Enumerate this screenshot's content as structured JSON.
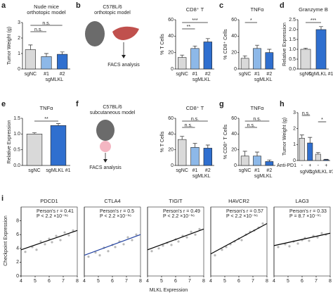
{
  "figure": {
    "diagrams": [
      {
        "panel": "b",
        "strain": "C57BL/6",
        "model": "orthotopic model",
        "step": "FACS analysis"
      },
      {
        "panel": "f",
        "strain": "C57BL/6",
        "model": "subcutaneous model",
        "step": "FACS analysis"
      }
    ],
    "scatter_row": {
      "panel": "i",
      "xlabel": "MLKL Expression",
      "ylabel": "Checkpoint Expression"
    }
  },
  "chart_data": [
    {
      "type": "bar",
      "panel": "a",
      "title": "Nude mice",
      "subtitle": "orthotopic model",
      "ylabel": "Tumor Weight (g)",
      "categories": [
        "sgNC",
        "#1",
        "#2"
      ],
      "group_label": "sgMLKL",
      "values": [
        1.25,
        0.8,
        0.95
      ],
      "errors": [
        0.3,
        0.2,
        0.15
      ],
      "colors": [
        "#d9d9d9",
        "#8db8e8",
        "#2f6fcf"
      ],
      "ylim": [
        0,
        3
      ],
      "yticks": [
        0,
        1,
        2,
        3
      ],
      "annotations": [
        "n.s.",
        "n.s."
      ]
    },
    {
      "type": "bar",
      "title": "CD8⁺ T",
      "ylabel": "% T Cells",
      "categories": [
        "sgNC",
        "#1",
        "#2"
      ],
      "group_label": "sgMLKL",
      "values": [
        14,
        25,
        33
      ],
      "errors": [
        3,
        3,
        4
      ],
      "colors": [
        "#d9d9d9",
        "#8db8e8",
        "#2f6fcf"
      ],
      "ylim": [
        0,
        60
      ],
      "yticks": [
        0,
        20,
        40,
        60
      ],
      "annotations": [
        "***",
        "**"
      ]
    },
    {
      "type": "bar",
      "panel": "c",
      "title": "TNFα",
      "ylabel": "% CD8⁺ Cells",
      "categories": [
        "sgNC",
        "#1",
        "#2"
      ],
      "group_label": "sgMLKL",
      "values": [
        13,
        25,
        20
      ],
      "errors": [
        3,
        4,
        4
      ],
      "colors": [
        "#d9d9d9",
        "#8db8e8",
        "#2f6fcf"
      ],
      "ylim": [
        0,
        60
      ],
      "yticks": [
        0,
        20,
        40,
        60
      ],
      "annotations": [
        "*"
      ]
    },
    {
      "type": "bar",
      "panel": "d",
      "title": "Granzyme B",
      "ylabel": "Relative Expression",
      "categories": [
        "sgNC",
        "sgMLKL #1"
      ],
      "values": [
        1.0,
        2.0
      ],
      "errors": [
        0.06,
        0.15
      ],
      "colors": [
        "#d9d9d9",
        "#2f6fcf"
      ],
      "ylim": [
        0,
        2.5
      ],
      "yticks": [
        {
          "value": 0,
          "label": "0.0"
        },
        0.5,
        {
          "value": 1,
          "label": "1.0"
        },
        1.5,
        {
          "value": 2,
          "label": "2.0"
        },
        2.5
      ],
      "annotations": [
        "***"
      ]
    },
    {
      "type": "bar",
      "panel": "e",
      "title": "TNFα",
      "ylabel": "Relative Expression",
      "categories": [
        "sgNC",
        "sgMLKL #1"
      ],
      "values": [
        1.0,
        1.27
      ],
      "errors": [
        0.04,
        0.06
      ],
      "colors": [
        "#d9d9d9",
        "#2f6fcf"
      ],
      "ylim": [
        0,
        1.5
      ],
      "yticks": [
        {
          "value": 0,
          "label": "0.0"
        },
        0.5,
        {
          "value": 1,
          "label": "1.0"
        },
        1.5
      ],
      "annotations": [
        "**"
      ]
    },
    {
      "type": "bar",
      "title": "CD8⁺ T",
      "ylabel": "% T Cells",
      "categories": [
        "sgNC",
        "#1",
        "#2"
      ],
      "group_label": "sgMLKL",
      "values": [
        33,
        23,
        22
      ],
      "errors": [
        4,
        5,
        4
      ],
      "colors": [
        "#d9d9d9",
        "#8db8e8",
        "#2f6fcf"
      ],
      "ylim": [
        0,
        60
      ],
      "yticks": [
        0,
        20,
        40,
        60
      ],
      "annotations": [
        "n.s.",
        "n.s."
      ]
    },
    {
      "type": "bar",
      "panel": "g",
      "title": "TNFα",
      "ylabel": "% CD8⁺ T Cells",
      "categories": [
        "sgNC",
        "#1",
        "#2"
      ],
      "group_label": "sgMLKL",
      "values": [
        12,
        12,
        5
      ],
      "errors": [
        6,
        5,
        2
      ],
      "colors": [
        "#d9d9d9",
        "#8db8e8",
        "#2f6fcf"
      ],
      "ylim": [
        0,
        60
      ],
      "yticks": [
        0,
        20,
        40,
        60
      ],
      "annotations": [
        "n.s.",
        "n.s."
      ]
    },
    {
      "type": "bar",
      "panel": "h",
      "ylabel": "Tumor Weight (g)",
      "categories": [
        "-",
        "+",
        "-",
        "+"
      ],
      "row_label": "Anti-PD1",
      "group_labels": [
        "sgNC",
        "sgMLKL #1"
      ],
      "values": [
        1.4,
        1.1,
        0.4,
        0.05
      ],
      "errors": [
        0.2,
        0.35,
        0.1,
        0.03
      ],
      "colors": [
        "#d9d9d9",
        "#2f6fcf",
        "#d9d9d9",
        "#2f6fcf"
      ],
      "ylim": [
        0,
        3
      ],
      "yticks": [
        0,
        1,
        2,
        3
      ],
      "annotations": [
        "n.s.",
        "*"
      ]
    },
    {
      "type": "scatter",
      "title": "PDCD1",
      "stat_r": "Person's r = 0.41",
      "stat_p": "P < 2.2 ×10⁻¹⁶",
      "x": [
        4.3,
        4.8,
        5.1,
        5.4,
        5.7,
        6.0,
        6.2,
        6.5,
        6.8,
        7.1,
        7.4,
        7.7
      ],
      "values": [
        3.5,
        4.2,
        3.8,
        5.0,
        4.6,
        5.4,
        4.9,
        5.8,
        5.2,
        6.3,
        5.9,
        6.6
      ],
      "trend": {
        "x": [
          4,
          8
        ],
        "y": [
          3.8,
          6.6
        ],
        "color": "#000000"
      },
      "color": "#b8b8b8",
      "xlim": [
        4,
        8
      ],
      "xticks": [
        4,
        5,
        6,
        7,
        8
      ],
      "ylim": [
        0,
        10
      ],
      "yticks": [
        0,
        2,
        4,
        6,
        8
      ]
    },
    {
      "type": "scatter",
      "title": "CTLA4",
      "stat_r": "Person's r = 0.5",
      "stat_p": "P < 2.2 ×10⁻¹⁶",
      "x": [
        4.3,
        4.8,
        5.1,
        5.4,
        5.7,
        6.0,
        6.2,
        6.5,
        6.8,
        7.1,
        7.4,
        7.7
      ],
      "values": [
        2.8,
        3.4,
        3.0,
        4.1,
        3.6,
        4.5,
        4.2,
        5.0,
        4.6,
        5.6,
        5.2,
        6.0
      ],
      "trend": {
        "x": [
          4,
          8
        ],
        "y": [
          3.0,
          6.0
        ],
        "color": "#2040a0"
      },
      "color": "#b8b8b8",
      "xlim": [
        4,
        8
      ],
      "xticks": [
        4,
        5,
        6,
        7,
        8
      ],
      "ylim": [
        0,
        10
      ]
    },
    {
      "type": "scatter",
      "title": "TIGIT",
      "stat_r": "Person's r = 0.49",
      "stat_p": "P < 2.2 ×10⁻¹⁶",
      "x": [
        4.3,
        4.8,
        5.1,
        5.4,
        5.7,
        6.0,
        6.2,
        6.5,
        6.8,
        7.1,
        7.4,
        7.7
      ],
      "values": [
        3.6,
        4.0,
        4.4,
        4.8,
        4.5,
        5.3,
        5.0,
        5.8,
        5.6,
        6.4,
        6.0,
        6.8
      ],
      "trend": {
        "x": [
          4,
          8
        ],
        "y": [
          3.8,
          6.8
        ],
        "color": "#000000"
      },
      "color": "#b8b8b8",
      "xlim": [
        4,
        8
      ],
      "xticks": [
        4,
        5,
        6,
        7,
        8
      ],
      "ylim": [
        0,
        10
      ]
    },
    {
      "type": "scatter",
      "title": "HAVCR2",
      "stat_r": "Person's r = 0.57",
      "stat_p": "P < 2.2 ×10⁻¹⁶",
      "x": [
        4.3,
        4.8,
        5.1,
        5.4,
        5.7,
        6.0,
        6.2,
        6.5,
        6.8,
        7.1,
        7.4,
        7.7
      ],
      "values": [
        3.0,
        3.8,
        4.2,
        4.6,
        5.0,
        5.4,
        5.2,
        6.0,
        6.4,
        6.6,
        7.0,
        7.6
      ],
      "trend": {
        "x": [
          4,
          8
        ],
        "y": [
          3.2,
          7.6
        ],
        "color": "#000000"
      },
      "color": "#b8b8b8",
      "xlim": [
        4,
        8
      ],
      "xticks": [
        4,
        5,
        6,
        7,
        8
      ],
      "ylim": [
        0,
        10
      ]
    },
    {
      "type": "scatter",
      "title": "LAG3",
      "stat_r": "Person's r = 0.33",
      "stat_p": "P = 8.7 ×10⁻¹⁵",
      "x": [
        4.3,
        4.8,
        5.1,
        5.4,
        5.7,
        6.0,
        6.2,
        6.5,
        6.8,
        7.1,
        7.4,
        7.7
      ],
      "values": [
        4.2,
        4.6,
        4.3,
        5.0,
        4.7,
        5.2,
        5.5,
        5.1,
        5.8,
        5.6,
        6.2,
        6.0
      ],
      "trend": {
        "x": [
          4,
          8
        ],
        "y": [
          4.4,
          6.2
        ],
        "color": "#000000"
      },
      "color": "#b8b8b8",
      "xlim": [
        4,
        8
      ],
      "xticks": [
        4,
        5,
        6,
        7,
        8
      ],
      "ylim": [
        0,
        10
      ]
    }
  ]
}
